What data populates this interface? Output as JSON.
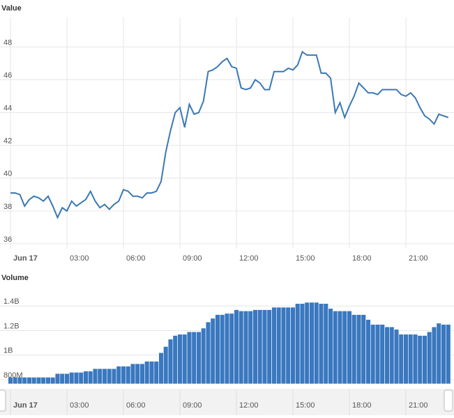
{
  "chart_data": [
    {
      "type": "line",
      "y_label": "Value",
      "x": [
        "00:00",
        "00:15",
        "00:30",
        "00:45",
        "01:00",
        "01:15",
        "01:30",
        "01:45",
        "02:00",
        "02:15",
        "02:30",
        "02:45",
        "03:00",
        "03:15",
        "03:30",
        "03:45",
        "04:00",
        "04:15",
        "04:30",
        "04:45",
        "05:00",
        "05:15",
        "05:30",
        "05:45",
        "06:00",
        "06:15",
        "06:30",
        "06:45",
        "07:00",
        "07:15",
        "07:30",
        "07:45",
        "08:00",
        "08:15",
        "08:30",
        "08:45",
        "09:00",
        "09:15",
        "09:30",
        "09:45",
        "10:00",
        "10:15",
        "10:30",
        "10:45",
        "11:00",
        "11:15",
        "11:30",
        "11:45",
        "12:00",
        "12:15",
        "12:30",
        "12:45",
        "13:00",
        "13:15",
        "13:30",
        "13:45",
        "14:00",
        "14:15",
        "14:30",
        "14:45",
        "15:00",
        "15:15",
        "15:30",
        "15:45",
        "16:00",
        "16:15",
        "16:30",
        "16:45",
        "17:00",
        "17:15",
        "17:30",
        "17:45",
        "18:00",
        "18:15",
        "18:30",
        "18:45",
        "19:00",
        "19:15",
        "19:30",
        "19:45",
        "20:00",
        "20:15",
        "20:30",
        "20:45",
        "21:00",
        "21:15",
        "21:30",
        "21:45",
        "22:00",
        "22:15",
        "22:30",
        "22:45",
        "23:00",
        "23:15"
      ],
      "series": [
        {
          "name": "Value",
          "color": "#3a78b5",
          "values": [
            39.1,
            39.1,
            39.0,
            38.3,
            38.7,
            38.9,
            38.8,
            38.6,
            38.9,
            38.3,
            37.6,
            38.2,
            38.0,
            38.6,
            38.3,
            38.5,
            38.7,
            39.2,
            38.6,
            38.2,
            38.4,
            38.1,
            38.4,
            38.6,
            39.3,
            39.2,
            38.9,
            38.9,
            38.8,
            39.1,
            39.1,
            39.2,
            39.8,
            41.6,
            42.9,
            44.0,
            44.3,
            43.1,
            44.5,
            43.9,
            44.0,
            44.7,
            46.5,
            46.6,
            46.8,
            47.1,
            47.3,
            46.8,
            46.7,
            45.5,
            45.4,
            45.5,
            46.0,
            45.8,
            45.4,
            45.4,
            46.5,
            46.5,
            46.5,
            46.7,
            46.6,
            46.9,
            47.7,
            47.5,
            47.5,
            47.5,
            46.4,
            46.4,
            46.1,
            44.0,
            44.6,
            43.7,
            44.4,
            45.0,
            45.8,
            45.5,
            45.2,
            45.2,
            45.1,
            45.4,
            45.4,
            45.4,
            45.4,
            45.1,
            45.0,
            45.2,
            44.9,
            44.3,
            43.8,
            43.6,
            43.3,
            43.9,
            43.8,
            43.7
          ]
        }
      ],
      "ylim": [
        35.7,
        49.8
      ],
      "yticks": [
        36,
        38,
        40,
        42,
        44,
        46,
        48
      ],
      "xticks": [
        {
          "value": "00:00",
          "label": "Jun 17"
        },
        "03:00",
        "06:00",
        "09:00",
        "12:00",
        "15:00",
        "18:00",
        "21:00"
      ],
      "grid": true
    },
    {
      "type": "bar",
      "y_label": "Volume",
      "x": [
        "00:00",
        "00:15",
        "00:30",
        "00:45",
        "01:00",
        "01:15",
        "01:30",
        "01:45",
        "02:00",
        "02:15",
        "02:30",
        "02:45",
        "03:00",
        "03:15",
        "03:30",
        "03:45",
        "04:00",
        "04:15",
        "04:30",
        "04:45",
        "05:00",
        "05:15",
        "05:30",
        "05:45",
        "06:00",
        "06:15",
        "06:30",
        "06:45",
        "07:00",
        "07:15",
        "07:30",
        "07:45",
        "08:00",
        "08:15",
        "08:30",
        "08:45",
        "09:00",
        "09:15",
        "09:30",
        "09:45",
        "10:00",
        "10:15",
        "10:30",
        "10:45",
        "11:00",
        "11:15",
        "11:30",
        "11:45",
        "12:00",
        "12:15",
        "12:30",
        "12:45",
        "13:00",
        "13:15",
        "13:30",
        "13:45",
        "14:00",
        "14:15",
        "14:30",
        "14:45",
        "15:00",
        "15:15",
        "15:30",
        "15:45",
        "16:00",
        "16:15",
        "16:30",
        "16:45",
        "17:00",
        "17:15",
        "17:30",
        "17:45",
        "18:00",
        "18:15",
        "18:30",
        "18:45",
        "19:00",
        "19:15",
        "19:30",
        "19:45",
        "20:00",
        "20:15",
        "20:30",
        "20:45",
        "21:00",
        "21:15",
        "21:30",
        "21:45",
        "22:00",
        "22:15",
        "22:30",
        "22:45",
        "23:00",
        "23:15"
      ],
      "series": [
        {
          "name": "Volume",
          "color": "#3a78bf",
          "values": [
            820000000,
            820000000,
            820000000,
            820000000,
            820000000,
            820000000,
            820000000,
            820000000,
            820000000,
            820000000,
            850000000,
            850000000,
            850000000,
            860000000,
            860000000,
            860000000,
            870000000,
            870000000,
            890000000,
            890000000,
            890000000,
            890000000,
            890000000,
            910000000,
            910000000,
            910000000,
            930000000,
            930000000,
            930000000,
            950000000,
            950000000,
            950000000,
            1020000000,
            1070000000,
            1130000000,
            1160000000,
            1170000000,
            1170000000,
            1190000000,
            1190000000,
            1190000000,
            1220000000,
            1270000000,
            1300000000,
            1330000000,
            1330000000,
            1340000000,
            1340000000,
            1370000000,
            1360000000,
            1360000000,
            1360000000,
            1370000000,
            1370000000,
            1370000000,
            1370000000,
            1390000000,
            1390000000,
            1390000000,
            1390000000,
            1390000000,
            1420000000,
            1420000000,
            1430000000,
            1430000000,
            1430000000,
            1420000000,
            1420000000,
            1380000000,
            1360000000,
            1360000000,
            1360000000,
            1360000000,
            1330000000,
            1330000000,
            1330000000,
            1290000000,
            1250000000,
            1250000000,
            1250000000,
            1230000000,
            1230000000,
            1210000000,
            1170000000,
            1170000000,
            1170000000,
            1170000000,
            1160000000,
            1160000000,
            1190000000,
            1230000000,
            1260000000,
            1250000000,
            1250000000
          ]
        }
      ],
      "ylim": [
        766000000,
        1566000000
      ],
      "yticks": [
        {
          "value": 800000000,
          "label": "800M"
        },
        {
          "value": 1000000000,
          "label": "1B"
        },
        {
          "value": 1200000000,
          "label": "1.2B"
        },
        {
          "value": 1400000000,
          "label": "1.4B"
        }
      ],
      "xticks": [
        {
          "value": "00:00",
          "label": "Jun 17"
        },
        "03:00",
        "06:00",
        "09:00",
        "12:00",
        "15:00",
        "18:00",
        "21:00"
      ],
      "grid": true
    }
  ]
}
